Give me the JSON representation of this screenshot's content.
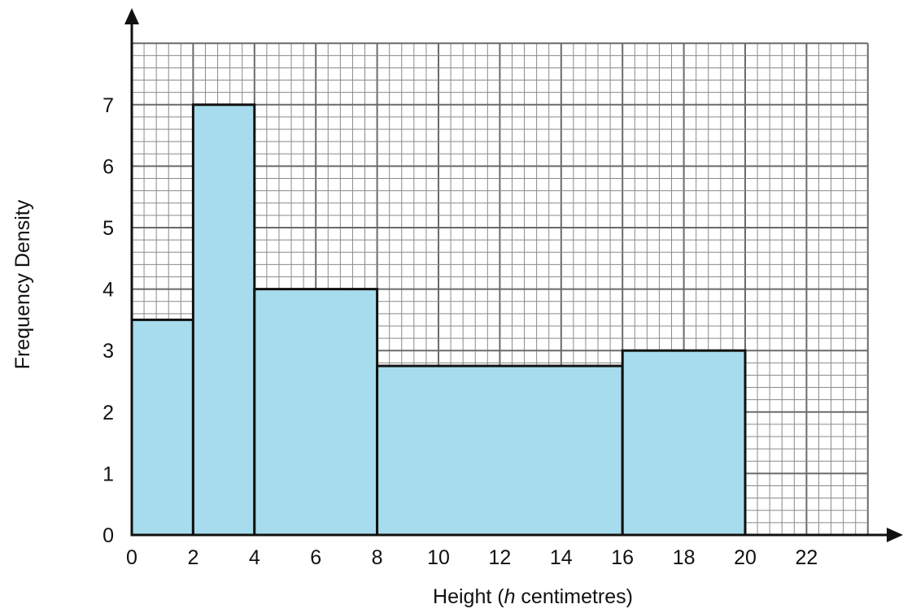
{
  "chart_data": {
    "type": "bar",
    "histogram": true,
    "xlabel_prefix": "Height  (",
    "xlabel_var": "h",
    "xlabel_suffix": " centimetres)",
    "ylabel": "Frequency Density",
    "xlim": [
      0,
      24
    ],
    "ylim": [
      0,
      8
    ],
    "x_ticks": [
      0,
      2,
      4,
      6,
      8,
      10,
      12,
      14,
      16,
      18,
      20,
      22
    ],
    "y_ticks": [
      0,
      1,
      2,
      3,
      4,
      5,
      6,
      7
    ],
    "grid": true,
    "bins": [
      {
        "x0": 0,
        "x1": 2,
        "value": 3.5
      },
      {
        "x0": 2,
        "x1": 4,
        "value": 7
      },
      {
        "x0": 4,
        "x1": 8,
        "value": 4
      },
      {
        "x0": 8,
        "x1": 16,
        "value": 2.75
      },
      {
        "x0": 16,
        "x1": 20,
        "value": 3
      }
    ],
    "colors": {
      "bar": "#a6dced",
      "edge": "#111111"
    }
  }
}
